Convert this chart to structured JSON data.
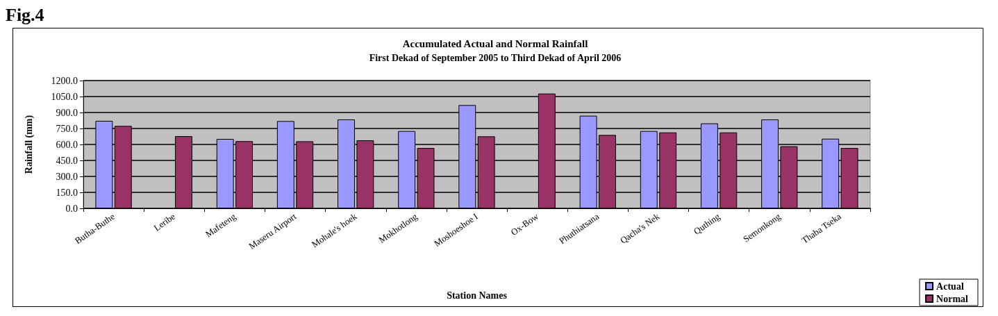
{
  "chart_data": {
    "type": "bar",
    "title": "Accumulated Actual and Normal Rainfall",
    "subtitle": "First Dekad of September 2005 to Third Dekad of April 2006",
    "xlabel": "Station Names",
    "ylabel": "Rainfall (mm)",
    "annotations": [
      "Fig.4"
    ],
    "categories": [
      "Butha-Buthe",
      "Leribe",
      "Mafeteng",
      "Maseru Airport",
      "Mohale's hoek",
      "Mokhotlong",
      "Moshoeshoe I",
      "Ox-Bow",
      "Phuthiatsana",
      "Qacha's Nek",
      "Quthing",
      "Semonkong",
      "Thaba Tseka"
    ],
    "series": [
      {
        "name": "Actual",
        "color": "#9999ff",
        "values": [
          822,
          null,
          652,
          820,
          835,
          726,
          970,
          null,
          870,
          726,
          798,
          835,
          654
        ]
      },
      {
        "name": "Normal",
        "color": "#993366",
        "values": [
          774,
          678,
          631,
          630,
          639,
          567,
          676,
          1078,
          689,
          713,
          713,
          583,
          567
        ]
      }
    ],
    "ylim": [
      0,
      1200
    ],
    "yticks": [
      {
        "value": 0,
        "label": "0.0"
      },
      {
        "value": 150,
        "label": "150.0"
      },
      {
        "value": 300,
        "label": "300.0"
      },
      {
        "value": 450,
        "label": "450.0"
      },
      {
        "value": 600,
        "label": "600.0"
      },
      {
        "value": 750,
        "label": "750.0"
      },
      {
        "value": 900,
        "label": "900.0"
      },
      {
        "value": 1050,
        "label": "1050.0"
      },
      {
        "value": 1200,
        "label": "1200.0"
      }
    ],
    "grid": "y",
    "legend": "bottom right"
  }
}
